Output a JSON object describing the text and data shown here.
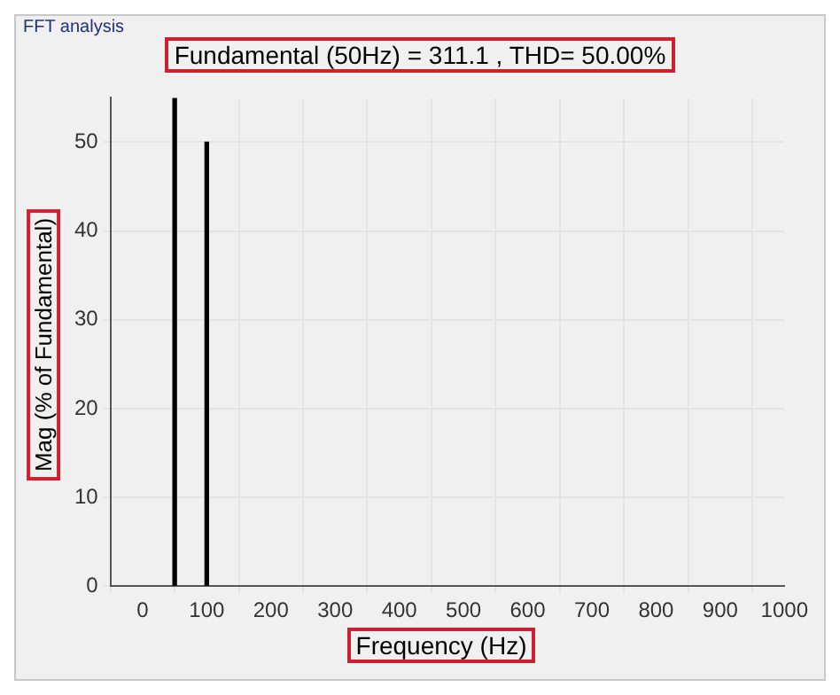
{
  "chart_data": {
    "type": "bar",
    "title": "Fundamental (50Hz) = 311.1 , THD= 50.00%",
    "xlabel": "Frequency (Hz)",
    "ylabel": "Mag (% of Fundamental)",
    "annotations": [
      "FFT analysis"
    ],
    "x": [
      50,
      100
    ],
    "values": [
      55,
      50
    ],
    "color": "#000000",
    "xlim": [
      -50,
      1000
    ],
    "xticks": [
      0,
      100,
      200,
      300,
      400,
      500,
      600,
      700,
      800,
      900,
      1000
    ],
    "ylim": [
      0,
      55
    ],
    "yticks": [
      0,
      10,
      20,
      30,
      40,
      50
    ],
    "grid": true
  }
}
